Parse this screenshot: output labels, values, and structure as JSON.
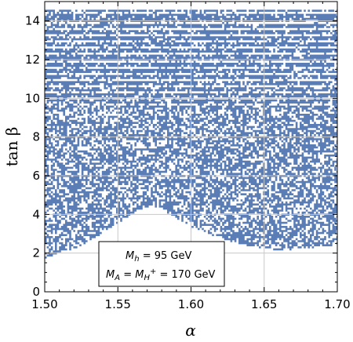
{
  "chart_data": {
    "type": "scatter",
    "title": "",
    "xlabel": "α",
    "ylabel": "tan β",
    "xlim": [
      1.5,
      1.7
    ],
    "ylim": [
      0,
      15
    ],
    "grid": true,
    "point_color": "#5b7db5",
    "x_ticks": [
      {
        "value": 1.5,
        "label": "1.50"
      },
      {
        "value": 1.55,
        "label": "1.55"
      },
      {
        "value": 1.6,
        "label": "1.60"
      },
      {
        "value": 1.65,
        "label": "1.65"
      },
      {
        "value": 1.7,
        "label": "1.70"
      }
    ],
    "y_ticks": [
      {
        "value": 0,
        "label": "0"
      },
      {
        "value": 2,
        "label": "2"
      },
      {
        "value": 4,
        "label": "4"
      },
      {
        "value": 6,
        "label": "6"
      },
      {
        "value": 8,
        "label": "8"
      },
      {
        "value": 10,
        "label": "10"
      },
      {
        "value": 12,
        "label": "12"
      },
      {
        "value": 14,
        "label": "14"
      }
    ],
    "lower_boundary": [
      [
        1.5,
        1.8
      ],
      [
        1.52,
        2.3
      ],
      [
        1.54,
        3.1
      ],
      [
        1.555,
        3.9
      ],
      [
        1.565,
        4.3
      ],
      [
        1.572,
        4.5
      ],
      [
        1.58,
        4.3
      ],
      [
        1.6,
        3.4
      ],
      [
        1.62,
        2.8
      ],
      [
        1.64,
        2.4
      ],
      [
        1.66,
        2.2
      ],
      [
        1.68,
        2.3
      ],
      [
        1.7,
        2.5
      ]
    ],
    "dense_band": [
      0,
      9.8
    ],
    "striped_band": [
      9.8,
      14.6
    ],
    "legend": {
      "line1": {
        "prefix": "M",
        "sub": "h",
        "suffix": " = 95 GeV"
      },
      "line2": {
        "prefix1": "M",
        "sub1": "A",
        "mid": " = ",
        "prefix2": "M",
        "sub2": "H",
        "sup2": "+",
        "suffix": " = 170 GeV"
      }
    }
  }
}
